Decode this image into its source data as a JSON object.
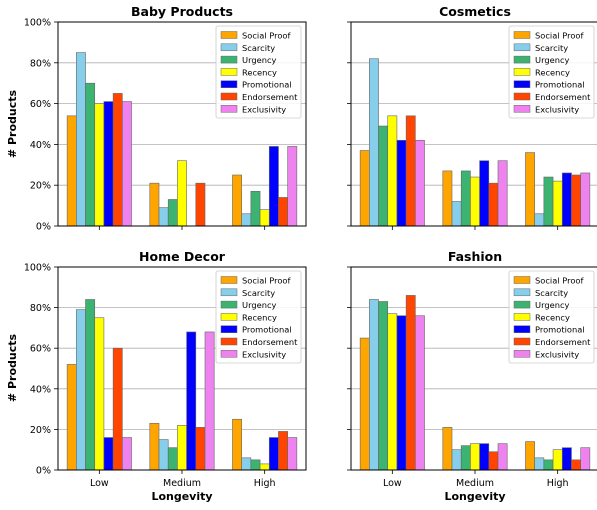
{
  "figure": {
    "ylabel": "# Products",
    "xlabel": "Longevity",
    "colors": [
      "#ffa500",
      "#87ceeb",
      "#3cb371",
      "#ffff00",
      "#0000ff",
      "#ff4500",
      "#ee82ee"
    ]
  },
  "chart_data": [
    {
      "type": "bar",
      "title": "Baby Products",
      "categories": [
        "Low",
        "Medium",
        "High"
      ],
      "ylim": [
        0,
        100
      ],
      "yticks": [
        "0%",
        "20%",
        "40%",
        "60%",
        "80%",
        "100%"
      ],
      "grid": true,
      "legend": "top-right",
      "series": [
        {
          "name": "Social Proof",
          "values": [
            54,
            21,
            25
          ]
        },
        {
          "name": "Scarcity",
          "values": [
            85,
            9,
            6
          ]
        },
        {
          "name": "Urgency",
          "values": [
            70,
            13,
            17
          ]
        },
        {
          "name": "Recency",
          "values": [
            60,
            32,
            8
          ]
        },
        {
          "name": "Promotional",
          "values": [
            61,
            0,
            39
          ]
        },
        {
          "name": "Endorsement",
          "values": [
            65,
            21,
            14
          ]
        },
        {
          "name": "Exclusivity",
          "values": [
            61,
            0,
            39
          ]
        }
      ]
    },
    {
      "type": "bar",
      "title": "Cosmetics",
      "categories": [
        "Low",
        "Medium",
        "High"
      ],
      "ylim": [
        0,
        100
      ],
      "grid": true,
      "legend": "top-right",
      "series": [
        {
          "name": "Social Proof",
          "values": [
            37,
            27,
            36
          ]
        },
        {
          "name": "Scarcity",
          "values": [
            82,
            12,
            6
          ]
        },
        {
          "name": "Urgency",
          "values": [
            49,
            27,
            24
          ]
        },
        {
          "name": "Recency",
          "values": [
            54,
            24,
            22
          ]
        },
        {
          "name": "Promotional",
          "values": [
            42,
            32,
            26
          ]
        },
        {
          "name": "Endorsement",
          "values": [
            54,
            21,
            25
          ]
        },
        {
          "name": "Exclusivity",
          "values": [
            42,
            32,
            26
          ]
        }
      ]
    },
    {
      "type": "bar",
      "title": "Home Decor",
      "categories": [
        "Low",
        "Medium",
        "High"
      ],
      "ylim": [
        0,
        100
      ],
      "yticks": [
        "0%",
        "20%",
        "40%",
        "60%",
        "80%",
        "100%"
      ],
      "grid": true,
      "legend": "top-right",
      "series": [
        {
          "name": "Social Proof",
          "values": [
            52,
            23,
            25
          ]
        },
        {
          "name": "Scarcity",
          "values": [
            79,
            15,
            6
          ]
        },
        {
          "name": "Urgency",
          "values": [
            84,
            11,
            5
          ]
        },
        {
          "name": "Recency",
          "values": [
            75,
            22,
            3
          ]
        },
        {
          "name": "Promotional",
          "values": [
            16,
            68,
            16
          ]
        },
        {
          "name": "Endorsement",
          "values": [
            60,
            21,
            19
          ]
        },
        {
          "name": "Exclusivity",
          "values": [
            16,
            68,
            16
          ]
        }
      ]
    },
    {
      "type": "bar",
      "title": "Fashion",
      "categories": [
        "Low",
        "Medium",
        "High"
      ],
      "ylim": [
        0,
        100
      ],
      "grid": true,
      "legend": "top-right",
      "series": [
        {
          "name": "Social Proof",
          "values": [
            65,
            21,
            14
          ]
        },
        {
          "name": "Scarcity",
          "values": [
            84,
            10,
            6
          ]
        },
        {
          "name": "Urgency",
          "values": [
            83,
            12,
            5
          ]
        },
        {
          "name": "Recency",
          "values": [
            77,
            13,
            10
          ]
        },
        {
          "name": "Promotional",
          "values": [
            76,
            13,
            11
          ]
        },
        {
          "name": "Endorsement",
          "values": [
            86,
            9,
            5
          ]
        },
        {
          "name": "Exclusivity",
          "values": [
            76,
            13,
            11
          ]
        }
      ]
    }
  ]
}
